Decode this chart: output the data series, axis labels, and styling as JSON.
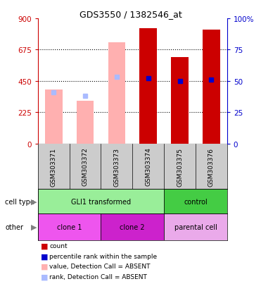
{
  "title": "GDS3550 / 1382546_at",
  "samples": [
    "GSM303371",
    "GSM303372",
    "GSM303373",
    "GSM303374",
    "GSM303375",
    "GSM303376"
  ],
  "bar_values": [
    null,
    null,
    null,
    830,
    620,
    820
  ],
  "absent_bar_values": [
    390,
    310,
    730,
    null,
    null,
    null
  ],
  "absent_bar_color": "#FFB0B0",
  "main_bar_color": "#CC0000",
  "percentile_values": [
    370,
    345,
    480,
    470,
    450,
    460
  ],
  "percentile_absent": [
    true,
    true,
    true,
    false,
    false,
    false
  ],
  "percentile_color_present": "#0000CC",
  "percentile_color_absent": "#AABBFF",
  "ylim_left": [
    0,
    900
  ],
  "ylim_right": [
    0,
    100
  ],
  "yticks_left": [
    0,
    225,
    450,
    675,
    900
  ],
  "yticks_right": [
    0,
    25,
    50,
    75,
    100
  ],
  "ytick_right_labels": [
    "0",
    "25",
    "50",
    "75",
    "100%"
  ],
  "left_axis_color": "#CC0000",
  "right_axis_color": "#0000CC",
  "grid_ticks": [
    225,
    450,
    675
  ],
  "cell_type_labels": [
    {
      "text": "GLI1 transformed",
      "start": 0,
      "end": 4,
      "color": "#99EE99"
    },
    {
      "text": "control",
      "start": 4,
      "end": 6,
      "color": "#44CC44"
    }
  ],
  "other_labels": [
    {
      "text": "clone 1",
      "start": 0,
      "end": 2,
      "color": "#EE55EE"
    },
    {
      "text": "clone 2",
      "start": 2,
      "end": 4,
      "color": "#CC22CC"
    },
    {
      "text": "parental cell",
      "start": 4,
      "end": 6,
      "color": "#EAAAEA"
    }
  ],
  "cell_type_row_label": "cell type",
  "other_row_label": "other",
  "sample_bg_color": "#CCCCCC",
  "legend_colors": [
    "#CC0000",
    "#0000CC",
    "#FFB0B0",
    "#AABBFF"
  ],
  "legend_labels": [
    "count",
    "percentile rank within the sample",
    "value, Detection Call = ABSENT",
    "rank, Detection Call = ABSENT"
  ]
}
